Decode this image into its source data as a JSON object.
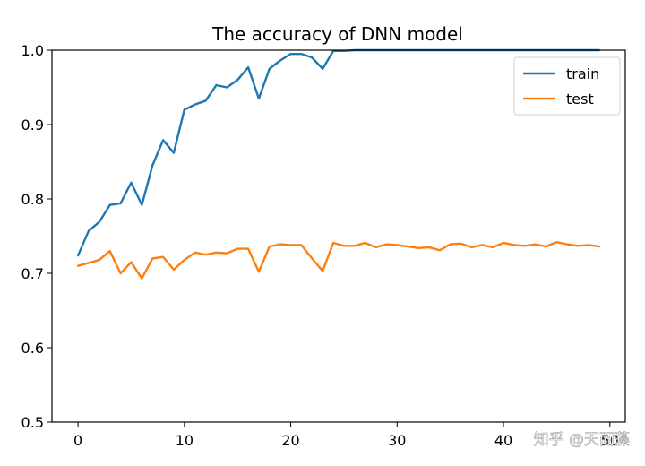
{
  "chart_data": {
    "type": "line",
    "title": "The accuracy of DNN model",
    "xlabel": "",
    "ylabel": "",
    "xlim": [
      -2.45,
      51.45
    ],
    "ylim": [
      0.5,
      1.0
    ],
    "xticks": [
      0,
      10,
      20,
      30,
      40,
      50
    ],
    "xtick_labels": [
      "0",
      "10",
      "20",
      "30",
      "40",
      "50"
    ],
    "yticks": [
      0.5,
      0.6,
      0.7,
      0.8,
      0.9,
      1.0
    ],
    "ytick_labels": [
      "0.5",
      "0.6",
      "0.7",
      "0.8",
      "0.9",
      "1.0"
    ],
    "grid": false,
    "legend_position": "top-right",
    "x": [
      0,
      1,
      2,
      3,
      4,
      5,
      6,
      7,
      8,
      9,
      10,
      11,
      12,
      13,
      14,
      15,
      16,
      17,
      18,
      19,
      20,
      21,
      22,
      23,
      24,
      25,
      26,
      27,
      28,
      29,
      30,
      31,
      32,
      33,
      34,
      35,
      36,
      37,
      38,
      39,
      40,
      41,
      42,
      43,
      44,
      45,
      46,
      47,
      48,
      49
    ],
    "series": [
      {
        "name": "train",
        "color": "#1f77b4",
        "values": [
          0.724,
          0.757,
          0.769,
          0.792,
          0.794,
          0.822,
          0.792,
          0.845,
          0.879,
          0.862,
          0.92,
          0.927,
          0.932,
          0.953,
          0.95,
          0.96,
          0.977,
          0.935,
          0.975,
          0.986,
          0.995,
          0.995,
          0.99,
          0.975,
          0.999,
          0.999,
          1.0,
          1.0,
          1.0,
          1.0,
          1.0,
          1.0,
          1.0,
          1.0,
          1.0,
          1.0,
          1.0,
          1.0,
          1.0,
          1.0,
          1.0,
          1.0,
          1.0,
          1.0,
          1.0,
          1.0,
          1.0,
          1.0,
          1.0,
          1.0
        ]
      },
      {
        "name": "test",
        "color": "#ff7f0e",
        "values": [
          0.71,
          0.714,
          0.718,
          0.73,
          0.7,
          0.715,
          0.693,
          0.72,
          0.722,
          0.705,
          0.718,
          0.728,
          0.725,
          0.728,
          0.727,
          0.733,
          0.733,
          0.702,
          0.736,
          0.739,
          0.738,
          0.738,
          0.72,
          0.703,
          0.741,
          0.737,
          0.737,
          0.741,
          0.735,
          0.739,
          0.738,
          0.736,
          0.734,
          0.735,
          0.731,
          0.739,
          0.74,
          0.735,
          0.738,
          0.735,
          0.741,
          0.738,
          0.737,
          0.739,
          0.736,
          0.742,
          0.739,
          0.737,
          0.738,
          0.736
        ]
      }
    ]
  },
  "watermark": "知乎 @天而藻"
}
